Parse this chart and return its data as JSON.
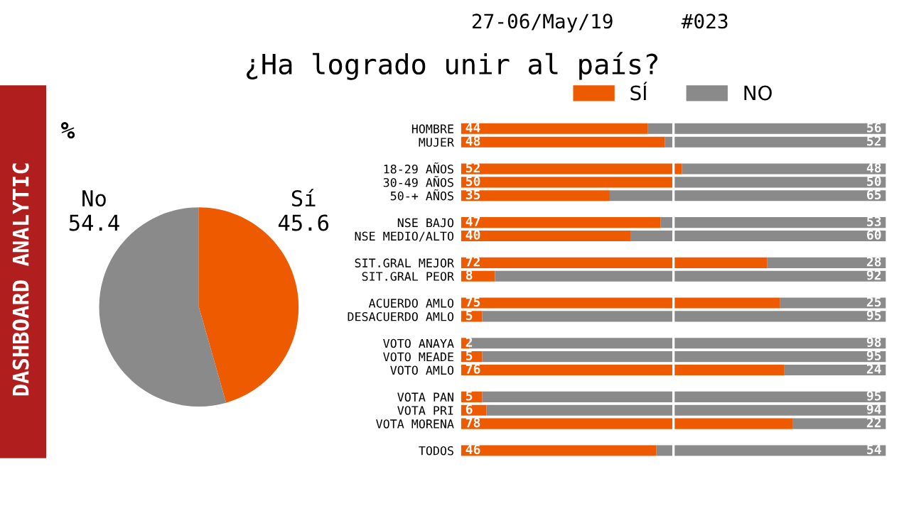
{
  "chart_data": [
    {
      "type": "pie",
      "title": "¿Ha logrado unir al país?",
      "categories": [
        "Sí",
        "No"
      ],
      "values": [
        45.6,
        54.4
      ],
      "colors": [
        "#ee5a00",
        "#8a8a8a"
      ],
      "data_labels": true,
      "annotations": [
        "%",
        "27-06/May/19",
        "#023",
        "DASHBOARD ANALYTIC"
      ]
    },
    {
      "type": "bar",
      "orientation": "horizontal",
      "stacked": true,
      "data_labels": true,
      "legend": "top",
      "tick_labels": "y",
      "xlim": [
        0,
        100
      ],
      "ref_lines": [
        {
          "axis": "x",
          "value": 50,
          "color": "#ffffff"
        }
      ],
      "categories": [
        "HOMBRE",
        "MUJER",
        null,
        "18-29 AÑOS",
        "30-49 AÑOS",
        "50-+ AÑOS",
        null,
        "NSE BAJO",
        "NSE MEDIO/ALTO",
        null,
        "SIT.GRAL MEJOR",
        "SIT.GRAL PEOR",
        null,
        "ACUERDO AMLO",
        "DESACUERDO AMLO",
        null,
        "VOTO ANAYA",
        "VOTO MEADE",
        "VOTO AMLO",
        null,
        "VOTA PAN",
        "VOTA PRI",
        "VOTA MORENA",
        null,
        "TODOS"
      ],
      "series": [
        {
          "name": "SÍ",
          "color": "#ee5a00",
          "values": [
            44,
            48,
            null,
            52,
            50,
            35,
            null,
            47,
            40,
            null,
            72,
            8,
            null,
            75,
            5,
            null,
            2,
            5,
            76,
            null,
            5,
            6,
            78,
            null,
            46
          ]
        },
        {
          "name": "NO",
          "color": "#8a8a8a",
          "values": [
            56,
            52,
            null,
            48,
            50,
            65,
            null,
            53,
            60,
            null,
            28,
            92,
            null,
            25,
            95,
            null,
            98,
            95,
            24,
            null,
            95,
            94,
            22,
            null,
            54
          ]
        }
      ]
    }
  ]
}
